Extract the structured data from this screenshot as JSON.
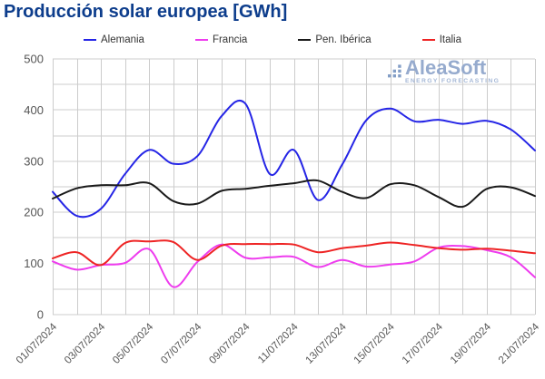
{
  "title": {
    "text": "Producción solar europea [GWh]",
    "color": "#0d3d8c"
  },
  "watermark": {
    "brand": "AleaSoft",
    "tagline": "ENERGY FORECASTING",
    "brand_color": "#91a7cc",
    "tagline_color": "#9fb3d3",
    "dots_color": "#7d99c4"
  },
  "chart_data": {
    "type": "line",
    "title": "Producción solar europea [GWh]",
    "unit": "GWh",
    "dates": [
      "01/07/2024",
      "02/07/2024",
      "03/07/2024",
      "04/07/2024",
      "05/07/2024",
      "06/07/2024",
      "07/07/2024",
      "08/07/2024",
      "09/07/2024",
      "10/07/2024",
      "11/07/2024",
      "12/07/2024",
      "13/07/2024",
      "14/07/2024",
      "15/07/2024",
      "16/07/2024",
      "17/07/2024",
      "18/07/2024",
      "19/07/2024",
      "20/07/2024",
      "21/07/2024"
    ],
    "x_tick_labels": [
      "01/07/2024",
      "03/07/2024",
      "05/07/2024",
      "07/07/2024",
      "09/07/2024",
      "11/07/2024",
      "13/07/2024",
      "15/07/2024",
      "17/07/2024",
      "19/07/2024",
      "21/07/2024"
    ],
    "ylim": [
      0,
      500
    ],
    "y_tick_labels": [
      "0",
      "100",
      "200",
      "300",
      "400",
      "500"
    ],
    "y_tick_step": 100,
    "grid_step": 50,
    "grid_on": true,
    "legend_position": "top",
    "grid_color": "#cccccc",
    "tick_label_color": "#555555",
    "series": [
      {
        "name": "Alemania",
        "color": "#2525e6",
        "values": [
          240,
          193,
          207,
          275,
          322,
          295,
          310,
          388,
          412,
          275,
          322,
          224,
          293,
          380,
          403,
          378,
          381,
          373,
          379,
          362,
          321
        ]
      },
      {
        "name": "Francia",
        "color": "#ee3cee",
        "values": [
          104,
          88,
          97,
          101,
          128,
          54,
          103,
          137,
          111,
          112,
          113,
          93,
          107,
          94,
          98,
          104,
          131,
          134,
          126,
          112,
          73
        ]
      },
      {
        "name": "Pen. Ibérica",
        "color": "#1a1a1a",
        "values": [
          227,
          247,
          253,
          253,
          257,
          222,
          217,
          242,
          246,
          252,
          257,
          262,
          240,
          228,
          255,
          253,
          230,
          211,
          246,
          249,
          232
        ]
      },
      {
        "name": "Italia",
        "color": "#ee2424",
        "values": [
          110,
          122,
          97,
          140,
          143,
          142,
          107,
          135,
          138,
          138,
          137,
          122,
          130,
          135,
          141,
          136,
          130,
          127,
          129,
          125,
          120
        ]
      }
    ]
  }
}
